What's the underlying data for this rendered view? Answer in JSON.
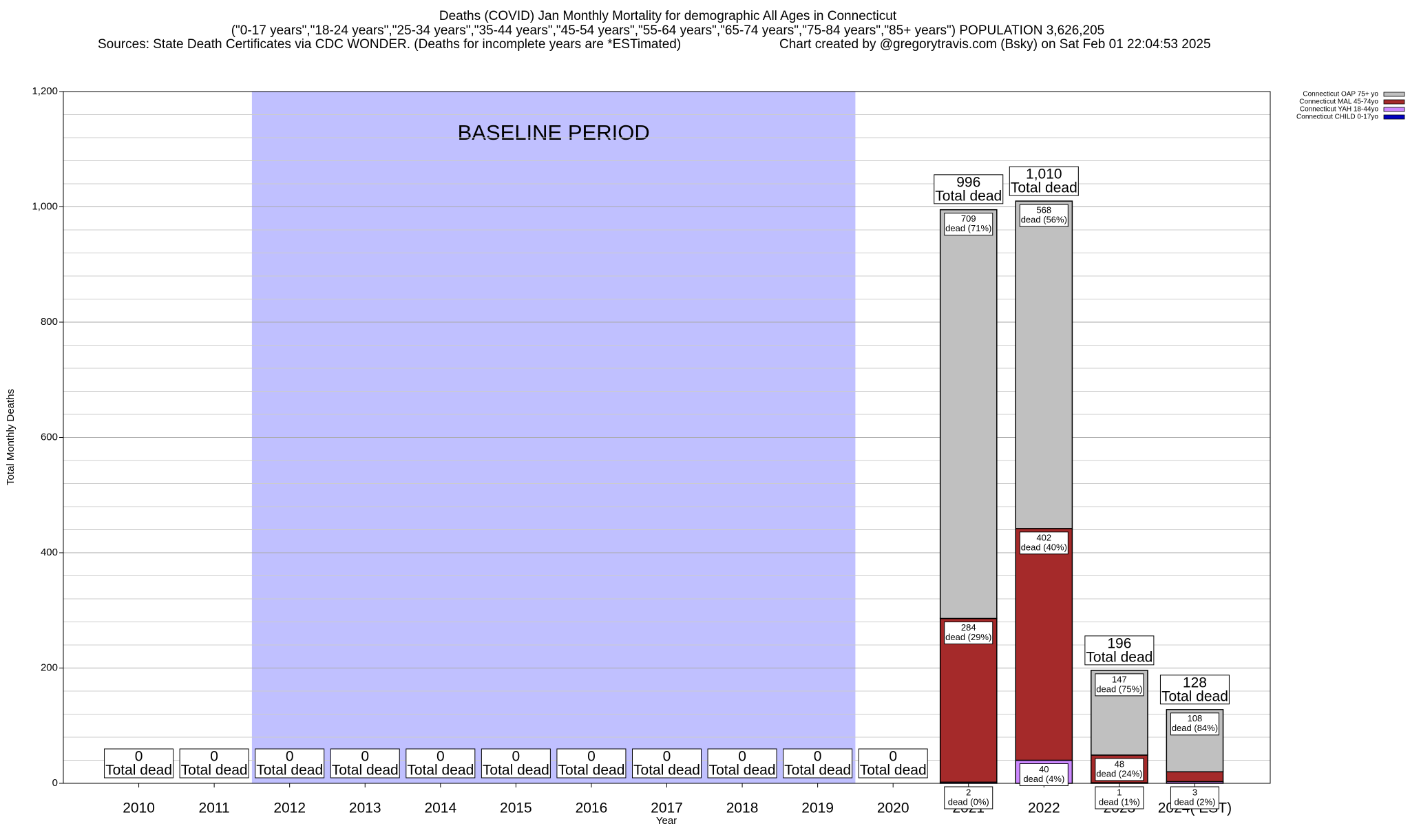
{
  "chart_data": {
    "type": "stacked_bar",
    "title": "Deaths (COVID) Jan Monthly Mortality for demographic All Ages in Connecticut",
    "subtitle": "(\"0-17 years\",\"18-24 years\",\"25-34 years\",\"35-44 years\",\"45-54 years\",\"55-64 years\",\"65-74 years\",\"75-84 years\",\"85+ years\") POPULATION 3,626,205",
    "sources": "Sources: State Death Certificates via CDC WONDER. (Deaths for incomplete years are *ESTimated)",
    "credit": "Chart created by @gregorytravis.com (Bsky) on Sat Feb 01 22:04:53 2025",
    "x_label": "Year",
    "y_label": "Total Monthly Deaths",
    "categories": [
      "2010",
      "2011",
      "2012",
      "2013",
      "2014",
      "2015",
      "2016",
      "2017",
      "2018",
      "2019",
      "2020",
      "2021",
      "2022",
      "2023",
      "2024( EST)"
    ],
    "series": [
      {
        "name": "Connecticut CHILD 0-17yo",
        "color": "#0000c0",
        "values": [
          0,
          0,
          0,
          0,
          0,
          0,
          0,
          0,
          0,
          0,
          0,
          0,
          0,
          0,
          0
        ],
        "labels": [
          null,
          null,
          null,
          null,
          null,
          null,
          null,
          null,
          null,
          null,
          null,
          null,
          null,
          null,
          null
        ]
      },
      {
        "name": "Connecticut YAH 18-44yo",
        "color": "#cc88ff",
        "values": [
          0,
          0,
          0,
          0,
          0,
          0,
          0,
          0,
          0,
          0,
          0,
          2,
          40,
          1,
          3
        ],
        "labels": [
          null,
          null,
          null,
          null,
          null,
          null,
          null,
          null,
          null,
          null,
          null,
          "dead (0%)",
          "dead (4%)",
          "dead (1%)",
          "dead (2%)"
        ]
      },
      {
        "name": "Connecticut MAL 45-74yo",
        "color": "#a52a2a",
        "values": [
          0,
          0,
          0,
          0,
          0,
          0,
          0,
          0,
          0,
          0,
          0,
          284,
          402,
          48,
          17
        ],
        "labels": [
          null,
          null,
          null,
          null,
          null,
          null,
          null,
          null,
          null,
          null,
          null,
          "dead (29%)",
          "dead (40%)",
          "dead (24%)",
          null
        ]
      },
      {
        "name": "Connecticut OAP 75+ yo",
        "color": "#c0c0c0",
        "values": [
          0,
          0,
          0,
          0,
          0,
          0,
          0,
          0,
          0,
          0,
          0,
          709,
          568,
          147,
          108
        ],
        "labels": [
          null,
          null,
          null,
          null,
          null,
          null,
          null,
          null,
          null,
          null,
          null,
          "dead (71%)",
          "dead (56%)",
          "dead (75%)",
          "dead (84%)"
        ]
      }
    ],
    "totals": {
      "label": "Total dead",
      "values": [
        0,
        0,
        0,
        0,
        0,
        0,
        0,
        0,
        0,
        0,
        0,
        996,
        1010,
        196,
        128
      ],
      "value_labels": [
        "0",
        "0",
        "0",
        "0",
        "0",
        "0",
        "0",
        "0",
        "0",
        "0",
        "0",
        "996",
        "1,010",
        "196",
        "128"
      ]
    },
    "shaded_region": {
      "label": "BASELINE PERIOD",
      "from": "2012",
      "to": "2019",
      "color": "#c0c0ff"
    },
    "ylim": [
      0,
      1200
    ],
    "yticks": [
      0,
      200,
      400,
      600,
      800,
      {
        "value": 1000,
        "label": "1,000"
      },
      {
        "value": 1200,
        "label": "1,200"
      }
    ],
    "grid": true,
    "minor_grid_per_tick": 5,
    "legend": "top-right"
  }
}
